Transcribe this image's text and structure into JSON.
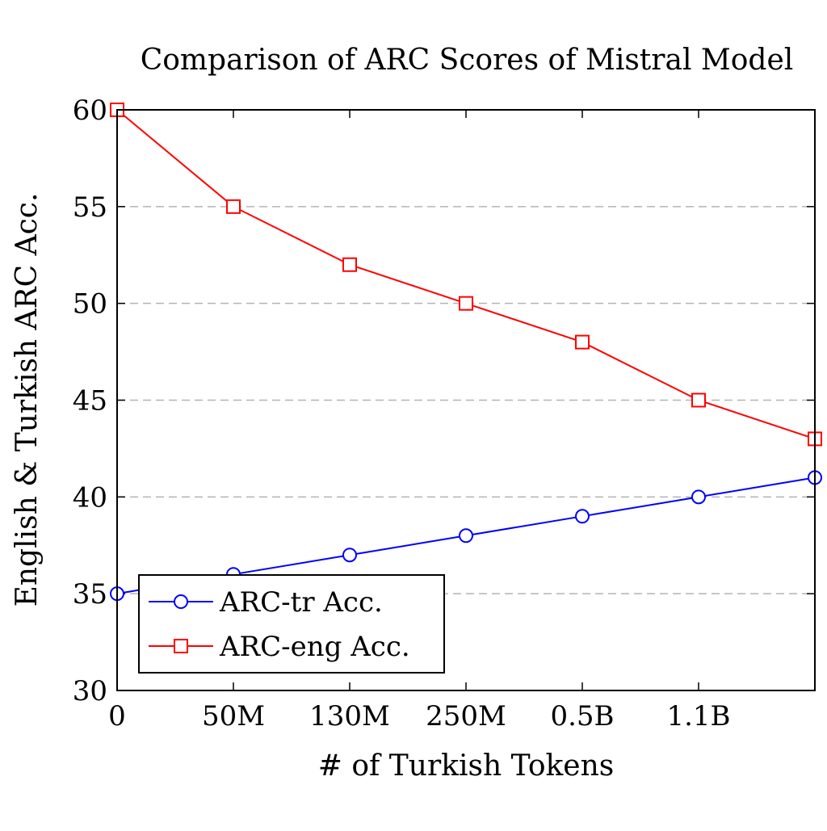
{
  "chart_data": {
    "type": "line",
    "title": "Comparison of ARC Scores of Mistral Model",
    "xlabel": "# of Turkish Tokens",
    "ylabel": "English & Turkish ARC Acc.",
    "x_tick_labels": [
      "0",
      "50M",
      "130M",
      "250M",
      "0.5B",
      "1.1B",
      ""
    ],
    "ylim": [
      30,
      60
    ],
    "y_ticks": [
      30,
      35,
      40,
      45,
      50,
      55,
      60
    ],
    "grid": "horizontal dashed",
    "legend_position": "bottom-left",
    "series": [
      {
        "name": "ARC-tr Acc.",
        "color": "#0000ff",
        "marker": "circle",
        "values": [
          35,
          36,
          37,
          38,
          39,
          40,
          41
        ]
      },
      {
        "name": "ARC-eng Acc.",
        "color": "#ff0000",
        "marker": "square",
        "values": [
          60,
          55,
          52,
          50,
          48,
          45,
          43
        ]
      }
    ]
  }
}
